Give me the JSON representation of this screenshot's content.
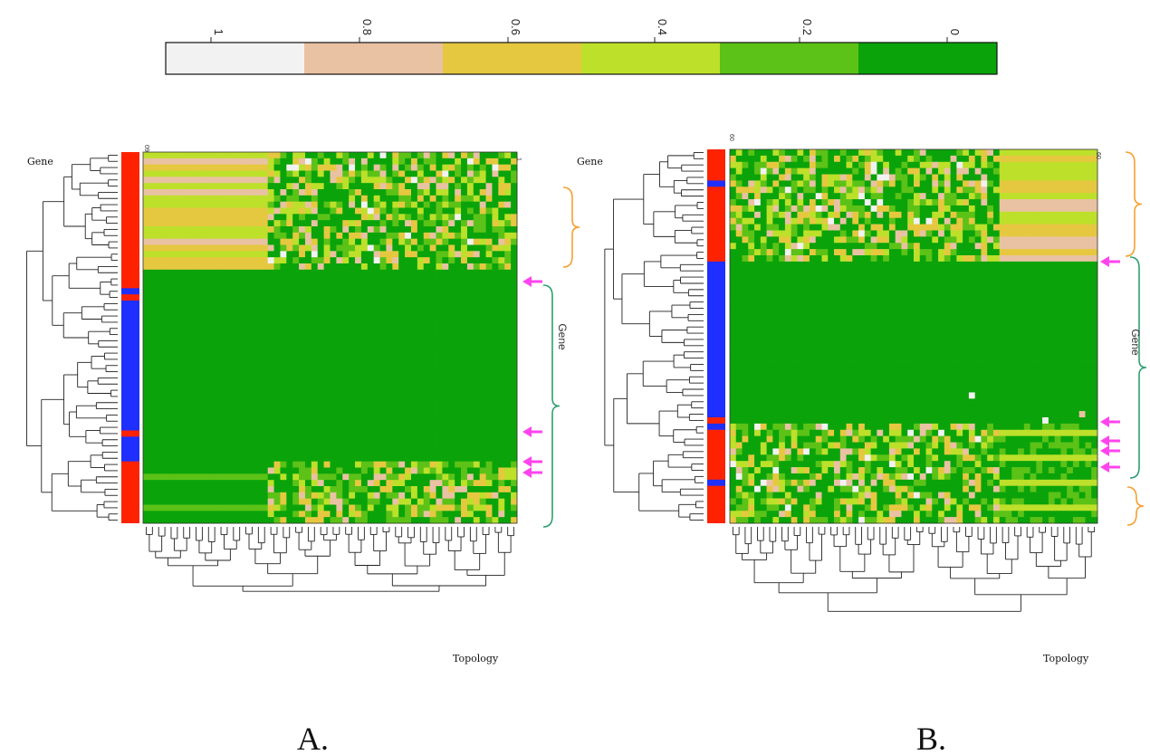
{
  "chart_data": {
    "type": "heatmap",
    "colorbar": {
      "tick_labels": [
        "1",
        "0.8",
        "0.6",
        "0.4",
        "0.2",
        "0"
      ],
      "bins": [
        "#f2f2f2",
        "#e9c2a3",
        "#e6c840",
        "#bde02a",
        "#5cc217",
        "#0aa30a"
      ]
    },
    "row_group_colors": {
      "group_a": "#ff2200",
      "group_b": "#1f2fff"
    },
    "accent_colors": {
      "arrow": "#ff44ee",
      "orange_bracket": "#f5a030",
      "green_bracket": "#2fa070"
    },
    "panels": [
      {
        "letter": "A.",
        "row_axis_label": "Gene",
        "col_axis_label": "Topology",
        "side_label": "Gene",
        "corner_tick_left": "09",
        "corner_tick_right": "1",
        "rows": 60,
        "cols": 60,
        "arrow_count": 4
      },
      {
        "letter": "B.",
        "row_axis_label": "Gene",
        "col_axis_label": "Topology",
        "side_label": "Gene",
        "corner_tick_left": "60",
        "corner_tick_right": "60",
        "rows": 60,
        "cols": 60,
        "arrow_count": 5
      }
    ]
  }
}
